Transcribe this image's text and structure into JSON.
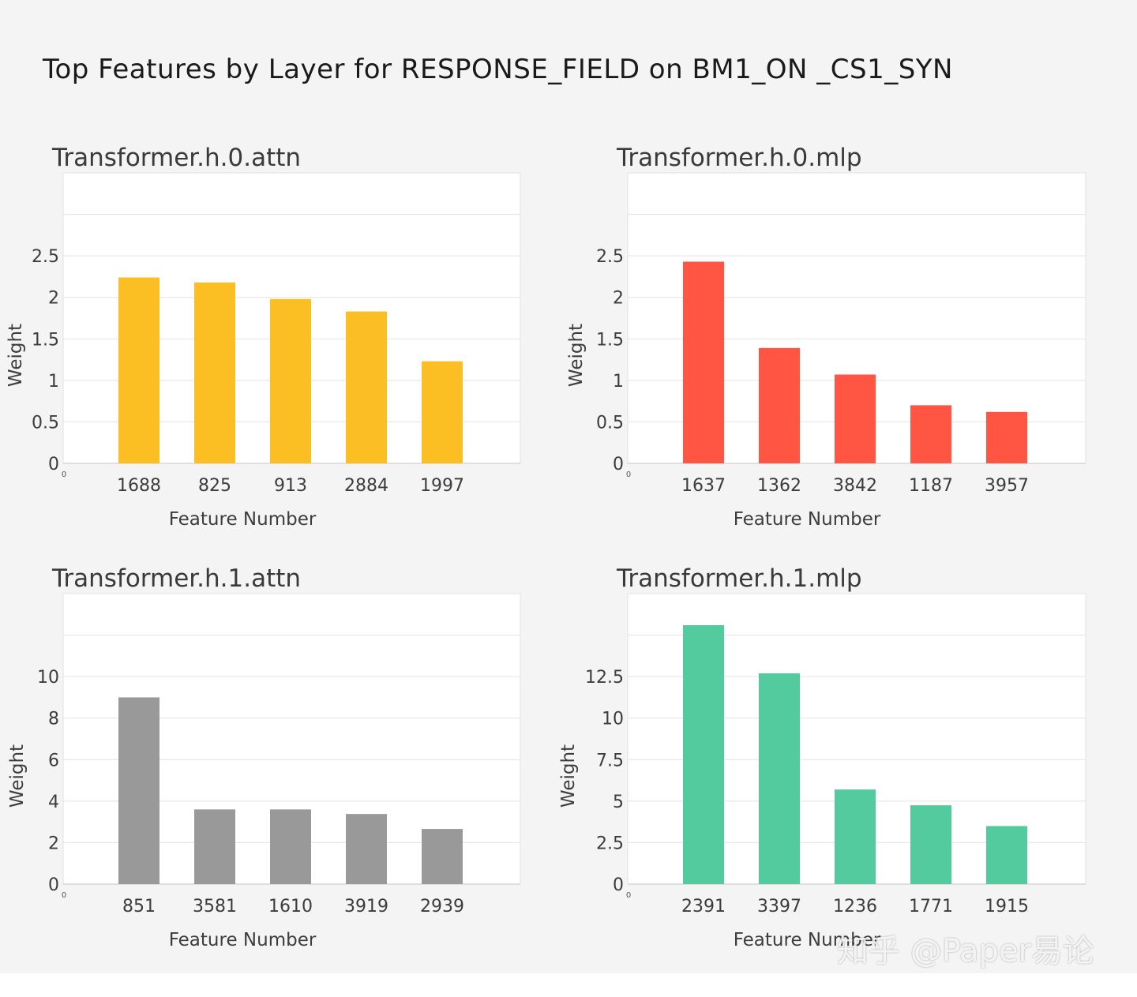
{
  "title": "Top Features by Layer for RESPONSE_FIELD on BM1_ON _CS1_SYN",
  "watermark": "知乎 @Paper易论",
  "origin_marker": "0",
  "chart_data": [
    {
      "type": "bar",
      "title": "Transformer.h.0.attn",
      "xlabel": "Feature Number",
      "ylabel": "Weight",
      "color": "#FBBF24",
      "categories": [
        "1688",
        "825",
        "913",
        "2884",
        "1997"
      ],
      "values": [
        2.24,
        2.18,
        1.98,
        1.83,
        1.23
      ],
      "ylim": [
        0,
        3.5
      ],
      "yticks": [
        0,
        0.5,
        1,
        1.5,
        2,
        2.5
      ],
      "ytick_labels": [
        "0",
        "0.5",
        "1",
        "1.5",
        "2",
        "2.5"
      ]
    },
    {
      "type": "bar",
      "title": "Transformer.h.0.mlp",
      "xlabel": "Feature Number",
      "ylabel": "Weight",
      "color": "#FF5542",
      "categories": [
        "1637",
        "1362",
        "3842",
        "1187",
        "3957"
      ],
      "values": [
        2.43,
        1.39,
        1.07,
        0.7,
        0.62
      ],
      "ylim": [
        0,
        3.5
      ],
      "yticks": [
        0,
        0.5,
        1,
        1.5,
        2,
        2.5
      ],
      "ytick_labels": [
        "0",
        "0.5",
        "1",
        "1.5",
        "2",
        "2.5"
      ]
    },
    {
      "type": "bar",
      "title": "Transformer.h.1.attn",
      "xlabel": "Feature Number",
      "ylabel": "Weight",
      "color": "#999999",
      "categories": [
        "851",
        "3581",
        "1610",
        "3919",
        "2939"
      ],
      "values": [
        9.0,
        3.6,
        3.6,
        3.38,
        2.66
      ],
      "ylim": [
        0,
        14
      ],
      "yticks": [
        0,
        2,
        4,
        6,
        8,
        10
      ],
      "ytick_labels": [
        "0",
        "2",
        "4",
        "6",
        "8",
        "10"
      ]
    },
    {
      "type": "bar",
      "title": "Transformer.h.1.mlp",
      "xlabel": "Feature Number",
      "ylabel": "Weight",
      "color": "#54CA9F",
      "categories": [
        "2391",
        "3397",
        "1236",
        "1771",
        "1915"
      ],
      "values": [
        15.6,
        12.7,
        5.7,
        4.75,
        3.5
      ],
      "ylim": [
        0,
        17.5
      ],
      "yticks": [
        0,
        2.5,
        5,
        7.5,
        10,
        12.5
      ],
      "ytick_labels": [
        "0",
        "2.5",
        "5",
        "7.5",
        "10",
        "12.5"
      ]
    }
  ]
}
